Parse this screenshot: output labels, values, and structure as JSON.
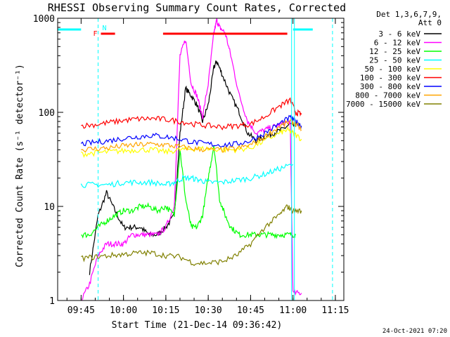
{
  "chart_data": {
    "type": "line",
    "title": "RHESSI Observing Summary Count Rates, Corrected",
    "xlabel": "Start Time (21-Dec-14 09:36:42)",
    "ylabel": "Corrected Count Rate (s⁻¹ detector⁻¹)",
    "y_scale": "log",
    "ylim": [
      1,
      1000
    ],
    "xlim": [
      "09:36:42",
      "11:18:00"
    ],
    "x_ticks": [
      "09:45",
      "10:00",
      "10:15",
      "10:30",
      "10:45",
      "11:00",
      "11:15"
    ],
    "y_ticks": [
      "1",
      "10",
      "100",
      "1000"
    ],
    "legend_header": [
      "Det 1,3,6,7,9,",
      "Att 0"
    ],
    "legend_position": "right",
    "series": [
      {
        "name": "3 - 6 keV",
        "color": "#000000",
        "x": [
          "09:48",
          "09:51",
          "09:54",
          "09:57",
          "10:00",
          "10:03",
          "10:06",
          "10:09",
          "10:12",
          "10:15",
          "10:18",
          "10:20",
          "10:22",
          "10:24",
          "10:26",
          "10:28",
          "10:30",
          "10:32",
          "10:33",
          "10:35",
          "10:38",
          "10:41",
          "10:44",
          "10:47",
          "10:50",
          "10:53",
          "10:56",
          "10:59",
          "11:01"
        ],
        "values": [
          2,
          8,
          14,
          9,
          6,
          6,
          6,
          5,
          5,
          6,
          8,
          60,
          180,
          150,
          120,
          80,
          120,
          300,
          350,
          250,
          150,
          100,
          60,
          50,
          55,
          60,
          65,
          75,
          70
        ]
      },
      {
        "name": "6 - 12 keV",
        "color": "#ff00ff",
        "x": [
          "09:45",
          "09:48",
          "09:51",
          "09:54",
          "09:57",
          "10:00",
          "10:03",
          "10:06",
          "10:09",
          "10:12",
          "10:15",
          "10:18",
          "10:20",
          "10:22",
          "10:24",
          "10:26",
          "10:28",
          "10:30",
          "10:32",
          "10:33",
          "10:34",
          "10:36",
          "10:38",
          "10:41",
          "10:44",
          "10:47",
          "10:50",
          "10:53",
          "10:56",
          "10:59",
          "11:00",
          "11:03"
        ],
        "values": [
          1,
          1.5,
          3,
          4,
          4,
          4,
          5,
          5,
          5,
          5,
          6,
          10,
          400,
          600,
          200,
          150,
          90,
          200,
          700,
          950,
          800,
          700,
          400,
          150,
          80,
          60,
          65,
          70,
          75,
          80,
          1.2,
          1.2
        ]
      },
      {
        "name": "12 - 25 keV",
        "color": "#00ff00",
        "x": [
          "09:45",
          "09:48",
          "09:51",
          "09:54",
          "09:57",
          "10:00",
          "10:03",
          "10:06",
          "10:09",
          "10:12",
          "10:15",
          "10:18",
          "10:20",
          "10:22",
          "10:24",
          "10:26",
          "10:28",
          "10:30",
          "10:32",
          "10:34",
          "10:36",
          "10:38",
          "10:41",
          "10:44",
          "10:47",
          "10:50",
          "10:53",
          "10:56",
          "10:59",
          "11:01"
        ],
        "values": [
          5,
          5,
          6,
          7,
          8,
          9,
          9,
          10,
          10,
          9,
          10,
          8,
          40,
          12,
          6,
          6,
          8,
          20,
          45,
          12,
          8,
          6,
          5,
          5,
          5,
          5,
          5,
          5,
          5,
          5
        ]
      },
      {
        "name": "25 - 50 keV",
        "color": "#00ffff",
        "x": [
          "09:45",
          "09:50",
          "09:55",
          "10:00",
          "10:05",
          "10:10",
          "10:15",
          "10:18",
          "10:21",
          "10:24",
          "10:27",
          "10:30",
          "10:35",
          "10:40",
          "10:45",
          "10:50",
          "10:55",
          "11:00"
        ],
        "values": [
          17,
          17,
          17,
          18,
          18,
          18,
          17,
          18,
          20,
          20,
          19,
          18,
          18,
          19,
          20,
          22,
          25,
          28
        ]
      },
      {
        "name": "50 - 100 keV",
        "color": "#ffff00",
        "x": [
          "09:45",
          "09:50",
          "09:55",
          "10:00",
          "10:05",
          "10:10",
          "10:15",
          "10:20",
          "10:25",
          "10:30",
          "10:35",
          "10:40",
          "10:45",
          "10:50",
          "10:55",
          "10:58",
          "11:00",
          "11:03"
        ],
        "values": [
          36,
          37,
          38,
          39,
          40,
          40,
          38,
          40,
          41,
          41,
          40,
          40,
          42,
          50,
          60,
          65,
          60,
          52
        ]
      },
      {
        "name": "100 - 300 keV",
        "color": "#ff0000",
        "x": [
          "09:45",
          "09:50",
          "09:55",
          "10:00",
          "10:05",
          "10:10",
          "10:15",
          "10:20",
          "10:25",
          "10:30",
          "10:35",
          "10:40",
          "10:45",
          "10:50",
          "10:55",
          "10:59",
          "11:01",
          "11:03"
        ],
        "values": [
          72,
          74,
          78,
          82,
          85,
          86,
          84,
          80,
          75,
          72,
          70,
          72,
          75,
          90,
          115,
          135,
          100,
          95
        ]
      },
      {
        "name": "300 - 800 keV",
        "color": "#0000ff",
        "x": [
          "09:45",
          "09:50",
          "09:55",
          "10:00",
          "10:05",
          "10:10",
          "10:15",
          "10:20",
          "10:25",
          "10:30",
          "10:35",
          "10:40",
          "10:45",
          "10:50",
          "10:55",
          "10:59",
          "11:01",
          "11:03"
        ],
        "values": [
          46,
          48,
          50,
          53,
          55,
          57,
          55,
          52,
          48,
          46,
          45,
          46,
          50,
          60,
          75,
          88,
          80,
          72
        ]
      },
      {
        "name": "800 - 7000 keV",
        "color": "#ffa500",
        "x": [
          "09:45",
          "09:50",
          "09:55",
          "10:00",
          "10:05",
          "10:10",
          "10:15",
          "10:20",
          "10:25",
          "10:30",
          "10:35",
          "10:40",
          "10:45",
          "10:50",
          "10:55",
          "10:59",
          "11:01",
          "11:03"
        ],
        "values": [
          40,
          41,
          42,
          44,
          45,
          46,
          45,
          43,
          41,
          40,
          40,
          41,
          45,
          55,
          70,
          80,
          75,
          65
        ]
      },
      {
        "name": "7000 - 15000 keV",
        "color": "#808000",
        "x": [
          "09:45",
          "09:50",
          "09:55",
          "10:00",
          "10:05",
          "10:10",
          "10:15",
          "10:20",
          "10:25",
          "10:30",
          "10:35",
          "10:40",
          "10:45",
          "10:50",
          "10:55",
          "10:58",
          "11:00",
          "11:03"
        ],
        "values": [
          2.8,
          2.9,
          3,
          3.1,
          3.2,
          3.2,
          3,
          2.9,
          2.5,
          2.5,
          2.6,
          3,
          4,
          6,
          8,
          10,
          9,
          9
        ]
      }
    ],
    "flag_label_f": "F",
    "flag_label_n": "N",
    "flag_bars": [
      {
        "color": "#00ffff",
        "x": [
          "09:36:42",
          "09:45:00"
        ]
      },
      {
        "color": "#ff0000",
        "x": [
          "09:52:00",
          "09:57:00"
        ]
      },
      {
        "color": "#ff0000",
        "x": [
          "10:14:00",
          "10:58:00"
        ]
      },
      {
        "color": "#00ffff",
        "x": [
          "11:00:00",
          "11:07:00"
        ]
      }
    ],
    "dashed_lines": [
      "09:51:00",
      "11:14:00"
    ],
    "solid_lines": [
      "10:59:30",
      "11:00:30"
    ],
    "footer_date": "24-Oct-2021 07:20"
  }
}
